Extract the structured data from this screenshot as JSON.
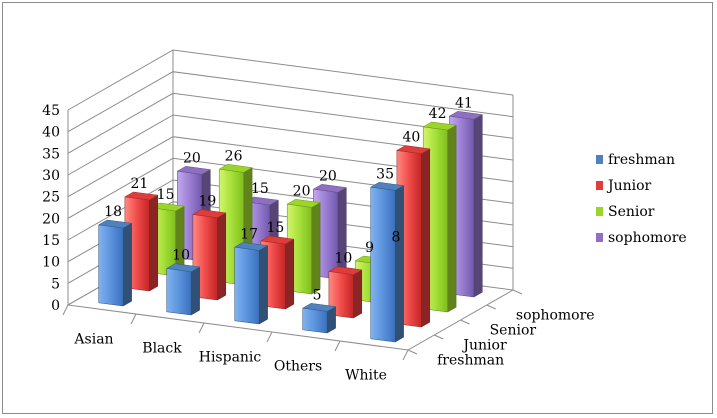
{
  "chart_data": {
    "type": "bar",
    "subtype": "3d-clustered-column",
    "categories": [
      "Asian",
      "Black",
      "Hispanic",
      "Others",
      "White"
    ],
    "depth_categories": [
      "freshman",
      "Junior",
      "Senior",
      "sophomore"
    ],
    "series": [
      {
        "name": "freshman",
        "color": "#4f81bd",
        "values": [
          18,
          10,
          17,
          5,
          35
        ]
      },
      {
        "name": "Junior",
        "color": "#e03c3c",
        "values": [
          21,
          19,
          15,
          10,
          40
        ]
      },
      {
        "name": "Senior",
        "color": "#9bd52a",
        "values": [
          15,
          26,
          20,
          9,
          42
        ]
      },
      {
        "name": "sophomore",
        "color": "#8e6fc2",
        "values": [
          20,
          15,
          20,
          8,
          41
        ]
      }
    ],
    "yticks": [
      "0",
      "5",
      "10",
      "15",
      "20",
      "25",
      "30",
      "35",
      "40",
      "45"
    ],
    "ylim": [
      0,
      45
    ],
    "title": "",
    "xlabel": "",
    "ylabel": "",
    "grid": true,
    "legend": "right"
  }
}
